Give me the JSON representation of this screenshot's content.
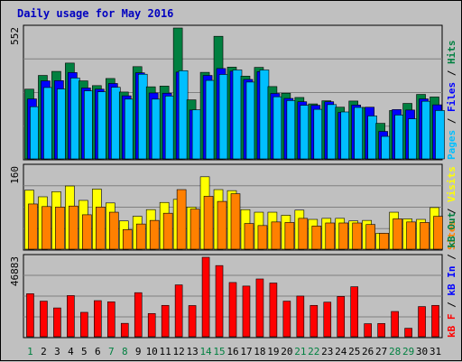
{
  "chart_data": {
    "type": "bar",
    "title": "Daily usage for May 2016",
    "x": [
      "1",
      "2",
      "3",
      "4",
      "5",
      "6",
      "7",
      "8",
      "9",
      "10",
      "11",
      "12",
      "13",
      "14",
      "15",
      "16",
      "17",
      "18",
      "19",
      "20",
      "21",
      "22",
      "23",
      "24",
      "25",
      "26",
      "27",
      "28",
      "29",
      "30",
      "31"
    ],
    "weekend_days": [
      "1",
      "7",
      "8",
      "14",
      "15",
      "21",
      "22",
      "28",
      "29"
    ],
    "panels": [
      {
        "name": "hits-files-pages",
        "y_max_label": "552",
        "ylim": [
          0,
          552
        ],
        "side_labels": [
          "Pages",
          "Files",
          "Hits"
        ],
        "series": [
          {
            "name": "Hits",
            "color": "#008040",
            "values": [
              294,
              352,
              369,
              404,
              329,
              309,
              339,
              282,
              389,
              304,
              307,
              552,
              249,
              365,
              517,
              387,
              349,
              386,
              305,
              277,
              259,
              232,
              245,
              218,
              244,
              217,
              150,
              204,
              234,
              272,
              261
            ]
          },
          {
            "name": "Files",
            "color": "#0000ff",
            "values": [
              253,
              329,
              330,
              364,
              299,
              294,
              318,
              266,
              363,
              278,
              277,
              366,
              206,
              352,
              381,
              370,
              335,
              368,
              276,
              255,
              241,
              226,
              241,
              196,
              227,
              218,
              116,
              208,
              206,
              253,
              228
            ]
          },
          {
            "name": "Pages",
            "color": "#00bfff",
            "values": [
              220,
              301,
              295,
              341,
              287,
              283,
              302,
              252,
              357,
              252,
              265,
              372,
              207,
              331,
              356,
              375,
              324,
              375,
              262,
              246,
              226,
              209,
              229,
              198,
              217,
              181,
              95,
              185,
              169,
              243,
              204
            ]
          }
        ]
      },
      {
        "name": "visits-sites",
        "y_max_label": "160",
        "ylim": [
          0,
          160
        ],
        "side_labels": [
          "Sites",
          "Visits"
        ],
        "series": [
          {
            "name": "Visits",
            "color": "#ffff00",
            "values": [
              115,
              102,
              112,
              123,
              95,
              117,
              90,
              55,
              64,
              77,
              91,
              97,
              82,
              141,
              116,
              114,
              77,
              72,
              72,
              66,
              76,
              58,
              60,
              60,
              55,
              56,
              31,
              72,
              59,
              58,
              81
            ]
          },
          {
            "name": "Sites",
            "color": "#ff8000",
            "values": [
              88,
              83,
              82,
              84,
              67,
              82,
              72,
              38,
              49,
              56,
              70,
              116,
              78,
              103,
              93,
              108,
              50,
              46,
              53,
              52,
              60,
              45,
              51,
              51,
              51,
              48,
              31,
              59,
              53,
              52,
              64
            ]
          }
        ]
      },
      {
        "name": "kbytes",
        "y_max_label": "46883",
        "ylim": [
          0,
          46883
        ],
        "side_labels": [
          "kB F",
          "kB In",
          "kB Out"
        ],
        "series": [
          {
            "name": "kB F",
            "color": "#ff0000",
            "values": [
              25400,
              21000,
              17000,
              24300,
              14400,
              21300,
              20600,
              7900,
              26000,
              13700,
              18500,
              30600,
              18400,
              46883,
              42000,
              32000,
              29900,
              34100,
              31700,
              21000,
              24000,
              18500,
              20400,
              23800,
              29500,
              7700,
              7800,
              14900,
              5000,
              17800,
              18500
            ]
          }
        ]
      }
    ]
  }
}
